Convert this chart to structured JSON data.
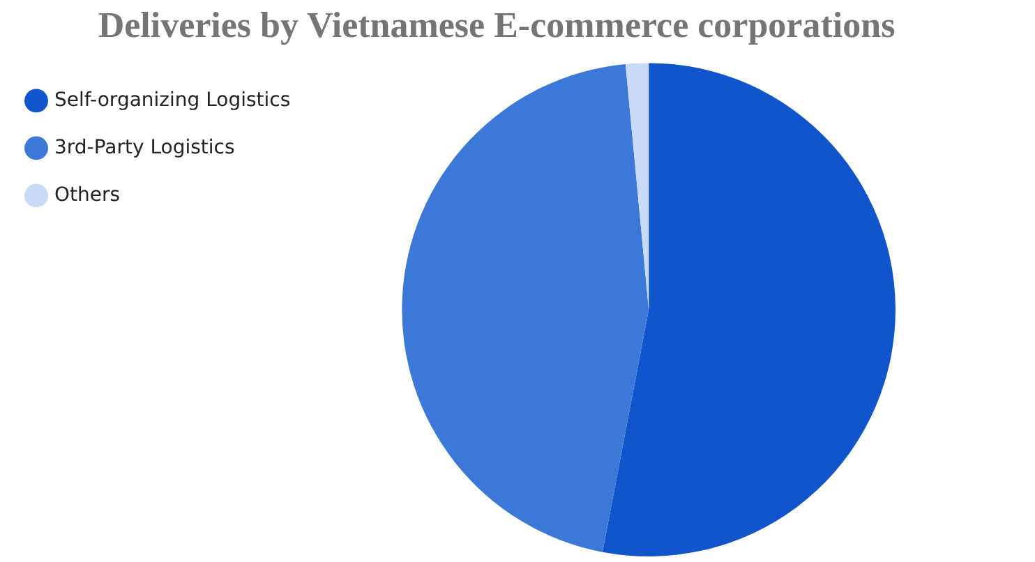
{
  "chart_data": {
    "type": "pie",
    "title": "Deliveries by Vietnamese E-commerce corporations",
    "categories": [
      "Self-organizing Logistics",
      "3rd-Party Logistics",
      "Others"
    ],
    "values": [
      53,
      45.5,
      1.5
    ],
    "colors": [
      "#1155cc",
      "#3c78d8",
      "#c9daf8"
    ],
    "legend": "left"
  }
}
